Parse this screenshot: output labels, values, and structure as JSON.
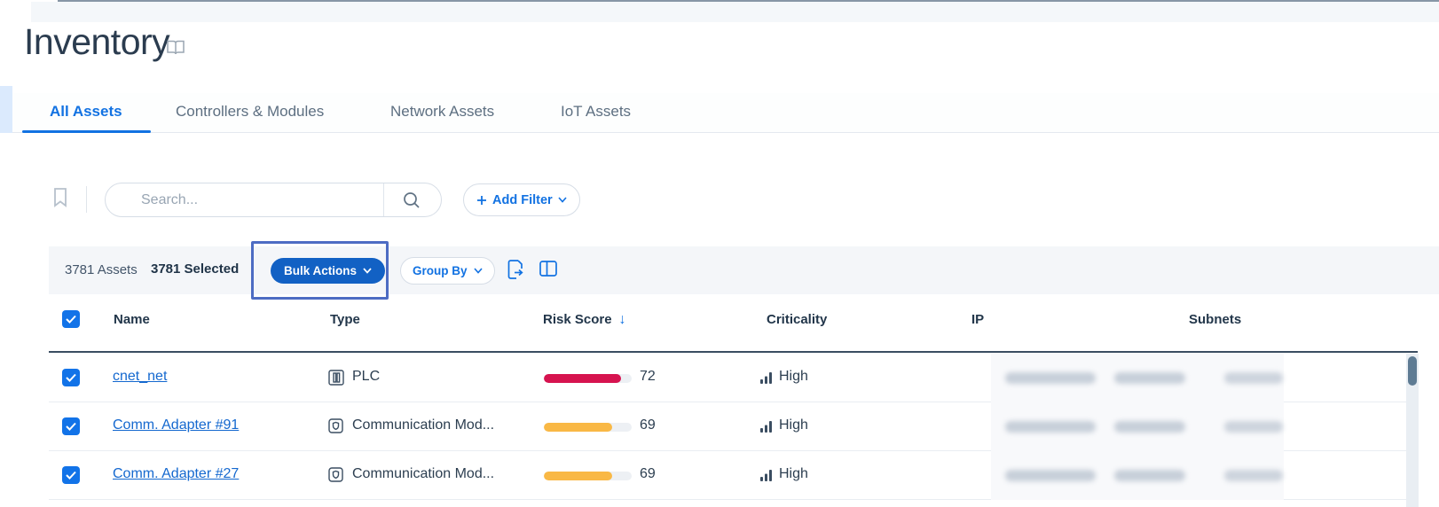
{
  "window": {
    "page_title": "Inventory"
  },
  "tabs": [
    {
      "label": "All Assets",
      "active": true
    },
    {
      "label": "Controllers & Modules",
      "active": false
    },
    {
      "label": "Network Assets",
      "active": false
    },
    {
      "label": "IoT Assets",
      "active": false
    }
  ],
  "filter_bar": {
    "search_placeholder": "Search...",
    "add_filter_label": "Add Filter"
  },
  "toolbar": {
    "assets_count": "3781 Assets",
    "selected_count": "3781 Selected",
    "bulk_actions_label": "Bulk Actions",
    "group_by_label": "Group By"
  },
  "table": {
    "headers": [
      "Name",
      "Type",
      "Risk Score",
      "Criticality",
      "IP",
      "Subnets"
    ],
    "sort": {
      "column": "Risk Score",
      "direction": "descending",
      "arrow": "↓"
    },
    "rows": [
      {
        "name": "cnet_net",
        "type": "PLC",
        "type_icon": "plc-icon",
        "risk_score": "72",
        "risk_fill_pct": 88,
        "risk_color": "#d6134f",
        "criticality": "High",
        "ip_redacted": true,
        "subnets_redacted": true
      },
      {
        "name": "Comm. Adapter #91",
        "type": "Communication Mod...",
        "type_icon": "module-icon",
        "risk_score": "69",
        "risk_fill_pct": 78,
        "risk_color": "#f9b845",
        "criticality": "High",
        "ip_redacted": true,
        "subnets_redacted": true
      },
      {
        "name": "Comm. Adapter #27",
        "type": "Communication Mod...",
        "type_icon": "module-icon",
        "risk_score": "69",
        "risk_fill_pct": 78,
        "risk_color": "#f9b845",
        "criticality": "High",
        "ip_redacted": true,
        "subnets_redacted": true
      }
    ]
  },
  "colors": {
    "accent": "#1272e2",
    "primary_button": "#1261c4",
    "risk_red": "#d6134f",
    "risk_orange": "#f9b845",
    "navy_text": "#2c3e50",
    "annotation_highlight": "#4d6cc3"
  }
}
